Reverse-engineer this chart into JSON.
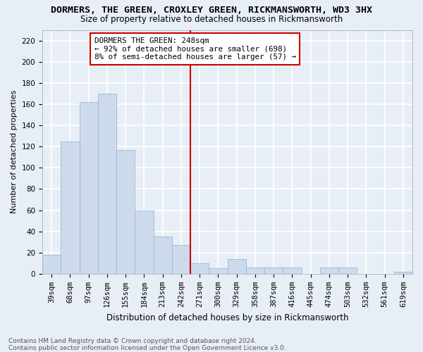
{
  "title": "DORMERS, THE GREEN, CROXLEY GREEN, RICKMANSWORTH, WD3 3HX",
  "subtitle": "Size of property relative to detached houses in Rickmansworth",
  "xlabel": "Distribution of detached houses by size in Rickmansworth",
  "ylabel": "Number of detached properties",
  "categories": [
    "39sqm",
    "68sqm",
    "97sqm",
    "126sqm",
    "155sqm",
    "184sqm",
    "213sqm",
    "242sqm",
    "271sqm",
    "300sqm",
    "329sqm",
    "358sqm",
    "387sqm",
    "416sqm",
    "445sqm",
    "474sqm",
    "503sqm",
    "532sqm",
    "561sqm",
    "619sqm"
  ],
  "values": [
    18,
    125,
    162,
    170,
    117,
    60,
    35,
    27,
    10,
    5,
    14,
    6,
    6,
    6,
    0,
    6,
    6,
    0,
    0,
    2
  ],
  "bar_color": "#ccdaec",
  "bar_edge_color": "#9ab8d8",
  "vline_x_index": 7,
  "vline_color": "#cc0000",
  "annotation_text": "DORMERS THE GREEN: 248sqm\n← 92% of detached houses are smaller (698)\n8% of semi-detached houses are larger (57) →",
  "annotation_box_color": "#ffffff",
  "annotation_box_edge": "#cc0000",
  "footnote": "Contains HM Land Registry data © Crown copyright and database right 2024.\nContains public sector information licensed under the Open Government Licence v3.0.",
  "ylim": [
    0,
    230
  ],
  "yticks": [
    0,
    20,
    40,
    60,
    80,
    100,
    120,
    140,
    160,
    180,
    200,
    220
  ],
  "bg_color": "#e8eef6",
  "fig_bg_color": "#e8eef6",
  "grid_color": "#ffffff",
  "title_fontsize": 9.5,
  "subtitle_fontsize": 8.5,
  "xlabel_fontsize": 8.5,
  "ylabel_fontsize": 8,
  "tick_fontsize": 7.5,
  "ann_fontsize": 7.8,
  "footnote_fontsize": 6.5
}
